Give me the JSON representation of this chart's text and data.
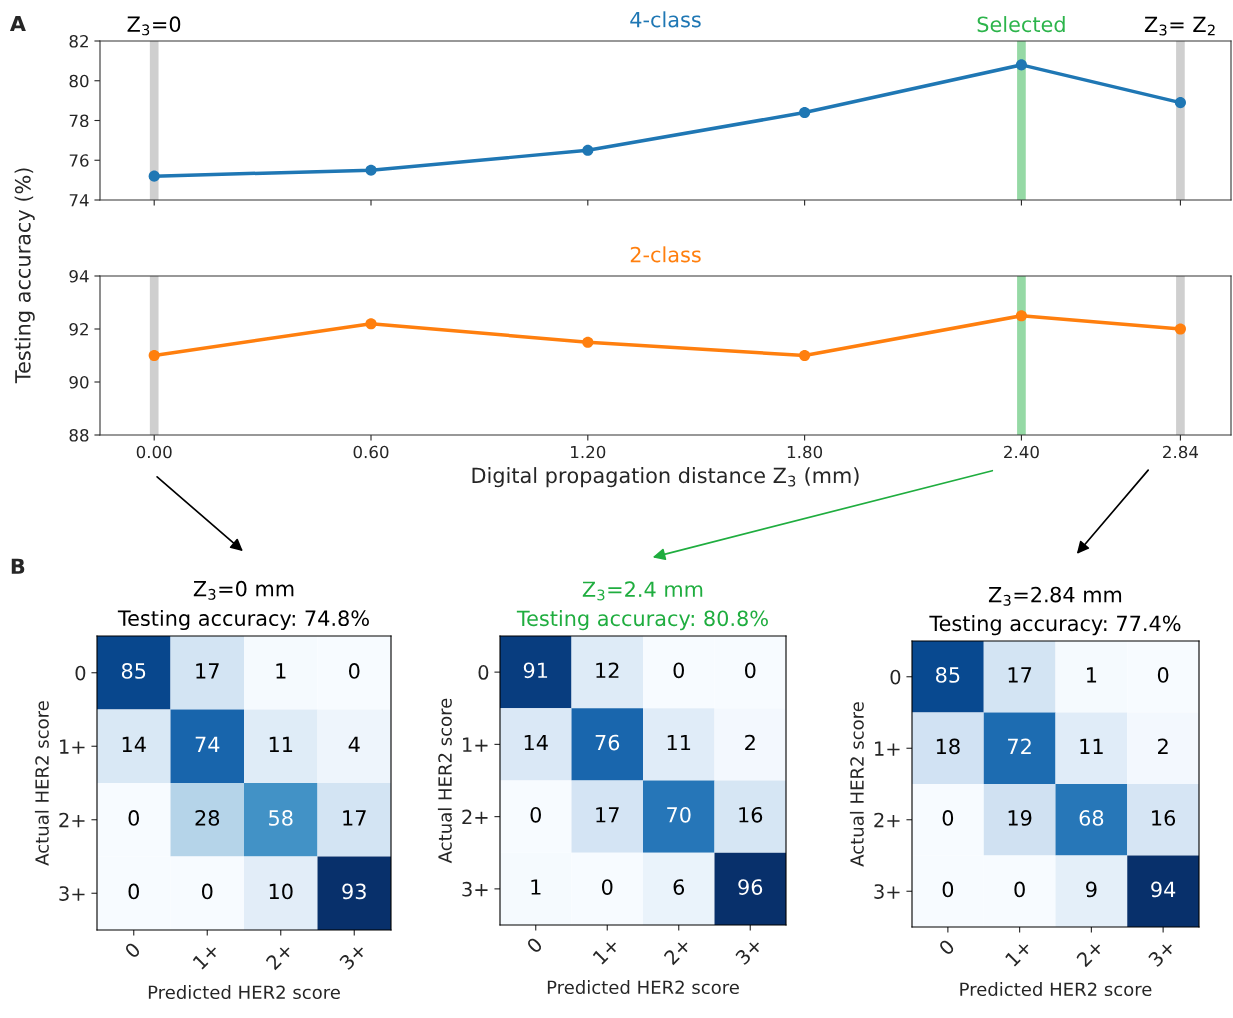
{
  "chart_data": [
    {
      "type": "line",
      "ylabel": "Testing accuracy (%)",
      "annotations": [
        "A"
      ],
      "x": [
        0,
        0.6,
        1.2,
        1.8,
        2.4,
        2.84
      ],
      "series": [
        {
          "name": "4-class",
          "color": "#1f77b4",
          "values": [
            75.2,
            75.5,
            76.5,
            78.4,
            80.8,
            78.9
          ]
        }
      ],
      "xlim": [
        -0.15,
        2.98
      ],
      "ylim": [
        74,
        82
      ],
      "yticks": [
        74,
        76,
        78,
        80,
        82
      ],
      "xticks": [
        {
          "value": 0,
          "label": null
        },
        {
          "value": 0.6,
          "label": null
        },
        {
          "value": 1.2,
          "label": null
        },
        {
          "value": 1.8,
          "label": null
        },
        {
          "value": 2.4,
          "label": null
        },
        {
          "value": 2.84,
          "label": null
        }
      ],
      "tick_labels": "y",
      "marker": "circle",
      "line_style": "solid",
      "grid": false,
      "legend": false,
      "bands": [
        {
          "axis": "x",
          "from": -0.012,
          "to": 0.012,
          "label": "Z$_{3}$=0",
          "color": "#a0a0a0"
        },
        {
          "axis": "x",
          "from": 2.388,
          "to": 2.412,
          "label": "Selected",
          "color": "#2cb44b"
        },
        {
          "axis": "x",
          "from": 2.828,
          "to": 2.852,
          "label": "Z$_{3}$= Z$_{2}$",
          "color": "#a0a0a0"
        }
      ]
    },
    {
      "type": "line",
      "xlabel": "Digital propagation distance Z$_{3}$ (mm)",
      "x": [
        0,
        0.6,
        1.2,
        1.8,
        2.4,
        2.84
      ],
      "series": [
        {
          "name": "2-class",
          "color": "#ff7f0e",
          "values": [
            91.0,
            92.2,
            91.5,
            91.0,
            92.5,
            92.0
          ]
        }
      ],
      "xlim": [
        -0.15,
        2.98
      ],
      "ylim": [
        88,
        94
      ],
      "yticks": [
        88,
        90,
        92,
        94
      ],
      "xticks": [
        {
          "value": 0,
          "label": "0.00"
        },
        {
          "value": 0.6,
          "label": "0.60"
        },
        {
          "value": 1.2,
          "label": "1.20"
        },
        {
          "value": 1.8,
          "label": "1.80"
        },
        {
          "value": 2.4,
          "label": "2.40"
        },
        {
          "value": 2.84,
          "label": "2.84"
        }
      ],
      "marker": "circle",
      "line_style": "solid",
      "grid": false,
      "legend": false,
      "bands": [
        {
          "axis": "x",
          "from": -0.012,
          "to": 0.012,
          "color": "#a0a0a0"
        },
        {
          "axis": "x",
          "from": 2.388,
          "to": 2.412,
          "color": "#2cb44b"
        },
        {
          "axis": "x",
          "from": 2.828,
          "to": 2.852,
          "color": "#a0a0a0"
        }
      ]
    },
    {
      "type": "heatmap",
      "title": "Z$_{3}$=0 mm",
      "subtitle": "Testing accuracy: 74.8%",
      "annotations": [
        "B"
      ],
      "color": "#000000",
      "xlabel": "Predicted HER2 score",
      "ylabel": "Actual HER2 score",
      "categories": [
        "0",
        "1+",
        "2+",
        "3+"
      ],
      "y_categories": [
        "0",
        "1+",
        "2+",
        "3+"
      ],
      "cells": [
        [
          85,
          17,
          1,
          0
        ],
        [
          14,
          74,
          11,
          4
        ],
        [
          0,
          28,
          58,
          17
        ],
        [
          0,
          0,
          10,
          93
        ]
      ],
      "data_labels": true
    },
    {
      "type": "heatmap",
      "title": "Z$_{3}$=2.4 mm",
      "subtitle": "Testing accuracy: 80.8%",
      "color": "#1fad3f",
      "xlabel": "Predicted HER2 score",
      "ylabel": "Actual HER2 score",
      "categories": [
        "0",
        "1+",
        "2+",
        "3+"
      ],
      "y_categories": [
        "0",
        "1+",
        "2+",
        "3+"
      ],
      "cells": [
        [
          91,
          12,
          0,
          0
        ],
        [
          14,
          76,
          11,
          2
        ],
        [
          0,
          17,
          70,
          16
        ],
        [
          1,
          0,
          6,
          96
        ]
      ],
      "data_labels": true
    },
    {
      "type": "heatmap",
      "title": "Z$_{3}$=2.84 mm",
      "subtitle": "Testing accuracy: 77.4%",
      "color": "#000000",
      "xlabel": "Predicted HER2 score",
      "ylabel": "Actual HER2 score",
      "categories": [
        "0",
        "1+",
        "2+",
        "3+"
      ],
      "y_categories": [
        "0",
        "1+",
        "2+",
        "3+"
      ],
      "cells": [
        [
          85,
          17,
          1,
          0
        ],
        [
          18,
          72,
          11,
          2
        ],
        [
          0,
          19,
          68,
          16
        ],
        [
          0,
          0,
          9,
          94
        ]
      ],
      "data_labels": true
    }
  ]
}
